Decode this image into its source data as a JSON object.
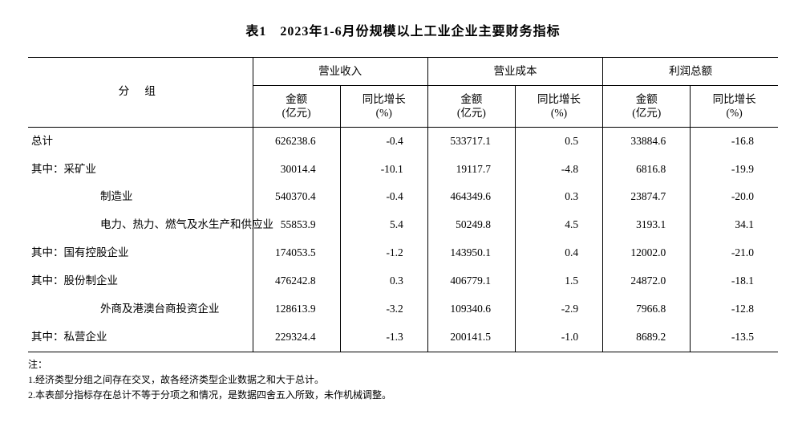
{
  "title": "表1　2023年1-6月份规模以上工业企业主要财务指标",
  "header": {
    "group_label": "分  组",
    "col_groups": [
      "营业收入",
      "营业成本",
      "利润总额"
    ],
    "sub_cols": {
      "amount": "金额\n(亿元)",
      "growth": "同比增长\n(%)"
    }
  },
  "rows": [
    {
      "label": "总计",
      "indent": 0,
      "rev_amt": "626238.6",
      "rev_g": "-0.4",
      "cost_amt": "533717.1",
      "cost_g": "0.5",
      "prof_amt": "33884.6",
      "prof_g": "-16.8"
    },
    {
      "label": "其中：采矿业",
      "indent": 0,
      "rev_amt": "30014.4",
      "rev_g": "-10.1",
      "cost_amt": "19117.7",
      "cost_g": "-4.8",
      "prof_amt": "6816.8",
      "prof_g": "-19.9"
    },
    {
      "label": "制造业",
      "indent": 2,
      "rev_amt": "540370.4",
      "rev_g": "-0.4",
      "cost_amt": "464349.6",
      "cost_g": "0.3",
      "prof_amt": "23874.7",
      "prof_g": "-20.0"
    },
    {
      "label": "电力、热力、燃气及水生产和供应业",
      "indent": 2,
      "rev_amt": "55853.9",
      "rev_g": "5.4",
      "cost_amt": "50249.8",
      "cost_g": "4.5",
      "prof_amt": "3193.1",
      "prof_g": "34.1"
    },
    {
      "label": "其中：国有控股企业",
      "indent": 0,
      "rev_amt": "174053.5",
      "rev_g": "-1.2",
      "cost_amt": "143950.1",
      "cost_g": "0.4",
      "prof_amt": "12002.0",
      "prof_g": "-21.0"
    },
    {
      "label": "其中：股份制企业",
      "indent": 0,
      "rev_amt": "476242.8",
      "rev_g": "0.3",
      "cost_amt": "406779.1",
      "cost_g": "1.5",
      "prof_amt": "24872.0",
      "prof_g": "-18.1"
    },
    {
      "label": "外商及港澳台商投资企业",
      "indent": 2,
      "rev_amt": "128613.9",
      "rev_g": "-3.2",
      "cost_amt": "109340.6",
      "cost_g": "-2.9",
      "prof_amt": "7966.8",
      "prof_g": "-12.8"
    },
    {
      "label": "其中：私营企业",
      "indent": 0,
      "rev_amt": "229324.4",
      "rev_g": "-1.3",
      "cost_amt": "200141.5",
      "cost_g": "-1.0",
      "prof_amt": "8689.2",
      "prof_g": "-13.5"
    }
  ],
  "notes": {
    "head": "注：",
    "lines": [
      "1.经济类型分组之间存在交叉，故各经济类型企业数据之和大于总计。",
      "2.本表部分指标存在总计不等于分项之和情况，是数据四舍五入所致，未作机械调整。"
    ]
  }
}
